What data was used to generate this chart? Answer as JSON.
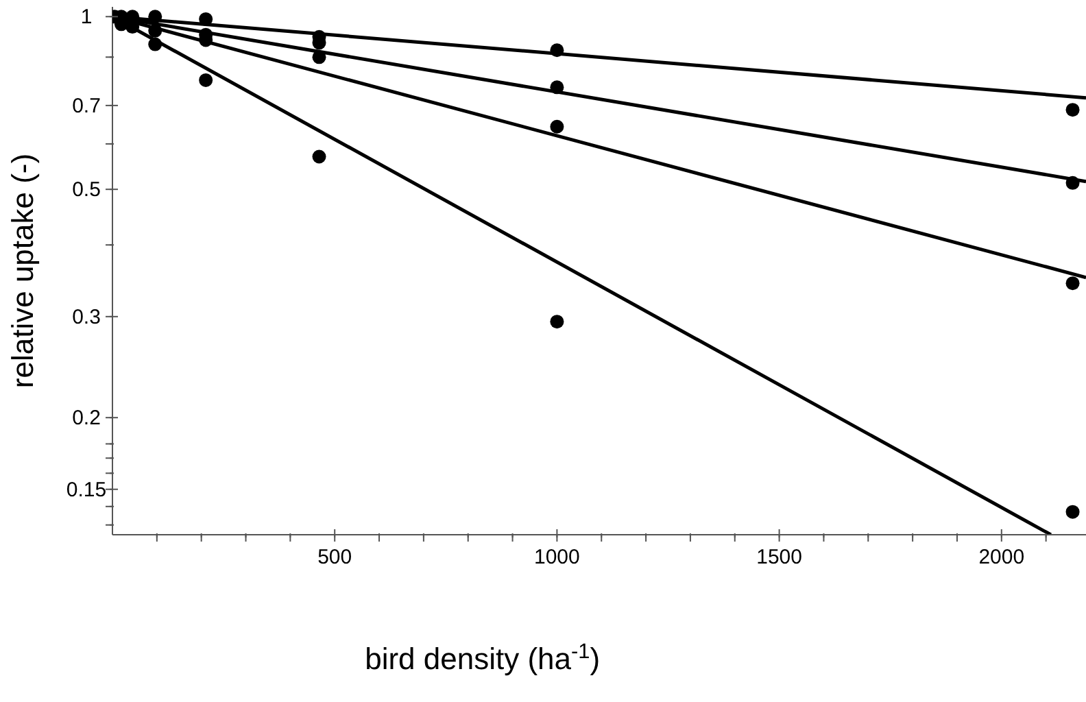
{
  "chart_data": {
    "type": "scatter",
    "xlabel": "bird density (ha$^{-1}$)",
    "ylabel": "relative uptake (-)",
    "log": "y",
    "line_style": "solid",
    "xlim": [
      0,
      2190
    ],
    "ylim": [
      0.125,
      1.04
    ],
    "xticks": [
      {
        "value": 100,
        "label": null
      },
      {
        "value": 200,
        "label": null
      },
      {
        "value": 300,
        "label": null
      },
      {
        "value": 400,
        "label": null
      },
      500,
      {
        "value": 600,
        "label": null
      },
      {
        "value": 700,
        "label": null
      },
      {
        "value": 800,
        "label": null
      },
      {
        "value": 900,
        "label": null
      },
      1000,
      {
        "value": 1100,
        "label": null
      },
      {
        "value": 1200,
        "label": null
      },
      {
        "value": 1300,
        "label": null
      },
      {
        "value": 1400,
        "label": null
      },
      1500,
      {
        "value": 1600,
        "label": null
      },
      {
        "value": 1700,
        "label": null
      },
      {
        "value": 1800,
        "label": null
      },
      {
        "value": 1900,
        "label": null
      },
      2000,
      {
        "value": 2100,
        "label": null
      }
    ],
    "yticks": [
      {
        "value": 0.13,
        "label": null
      },
      {
        "value": 0.14,
        "label": null
      },
      0.15,
      {
        "value": 0.16,
        "label": null
      },
      {
        "value": 0.17,
        "label": null
      },
      {
        "value": 0.18,
        "label": null
      },
      0.2,
      0.3,
      {
        "value": 0.4,
        "label": null
      },
      0.5,
      {
        "value": 0.6,
        "label": null
      },
      0.7,
      {
        "value": 0.85,
        "label": null
      },
      1
    ],
    "series": [
      {
        "color": "#000000",
        "marker": "circle",
        "x": [
          5,
          20,
          20,
          45,
          45,
          96,
          96,
          96,
          210,
          210,
          210,
          210,
          465,
          465,
          465,
          465,
          1000,
          1000,
          1000,
          1000,
          2160,
          2160,
          2160,
          2160
        ],
        "values": [
          1.0,
          1.0,
          0.97,
          1.0,
          0.96,
          1.0,
          0.945,
          0.895,
          0.99,
          0.93,
          0.91,
          0.775,
          0.922,
          0.9,
          0.85,
          0.57,
          0.874,
          0.753,
          0.643,
          0.294,
          0.688,
          0.513,
          0.343,
          0.137
        ]
      },
      {
        "type": "line",
        "marker": "none",
        "color": "#000000",
        "x": [
          0,
          2190
        ],
        "values": [
          1.0,
          0.722
        ]
      },
      {
        "type": "line",
        "marker": "none",
        "color": "#000000",
        "x": [
          0,
          2190
        ],
        "values": [
          1.0,
          0.516
        ]
      },
      {
        "type": "line",
        "marker": "none",
        "color": "#000000",
        "x": [
          0,
          2190
        ],
        "values": [
          1.0,
          0.351
        ]
      },
      {
        "type": "line",
        "marker": "none",
        "color": "#000000",
        "x": [
          0,
          2111
        ],
        "values": [
          1.0,
          0.125
        ]
      }
    ]
  }
}
